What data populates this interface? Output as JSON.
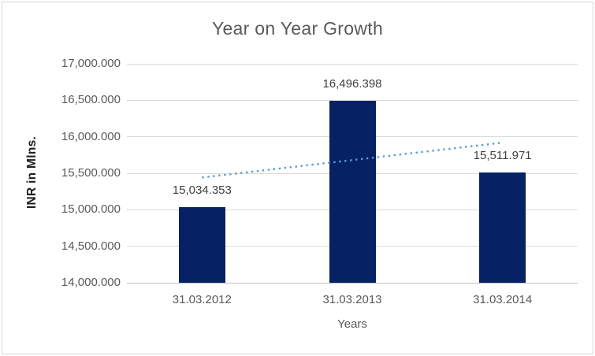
{
  "chart_data": {
    "type": "bar",
    "title": "Year on Year Growth",
    "categories": [
      "31.03.2012",
      "31.03.2013",
      "31.03.2014"
    ],
    "values": [
      15034.353,
      16496.398,
      15511.971
    ],
    "value_labels": [
      "15,034.353",
      "16,496.398",
      "15,511.971"
    ],
    "xlabel": "Years",
    "ylabel": "INR in Mlns.",
    "ylim": [
      14000,
      17000
    ],
    "ytick_step": 500,
    "ytick_labels": [
      "17,000.000",
      "16,500.000",
      "16,000.000",
      "15,500.000",
      "15,000.000",
      "14,500.000",
      "14,000.000"
    ],
    "grid": true,
    "legend": "none",
    "bar_color": "#062264",
    "trendline": {
      "type": "linear",
      "style": "dotted",
      "color": "#5b9bd5",
      "fit_endpoints": [
        15442.098,
        15919.716
      ]
    },
    "colors": {
      "background": "#ffffff",
      "border": "#d8d8d8",
      "gridline": "#d9d9d9",
      "axis_line": "#bfbfbf",
      "title_text": "#595959",
      "tick_text": "#595959",
      "data_label_text": "#3f3f3f",
      "y_axis_title_text": "#1f1f1f"
    }
  }
}
